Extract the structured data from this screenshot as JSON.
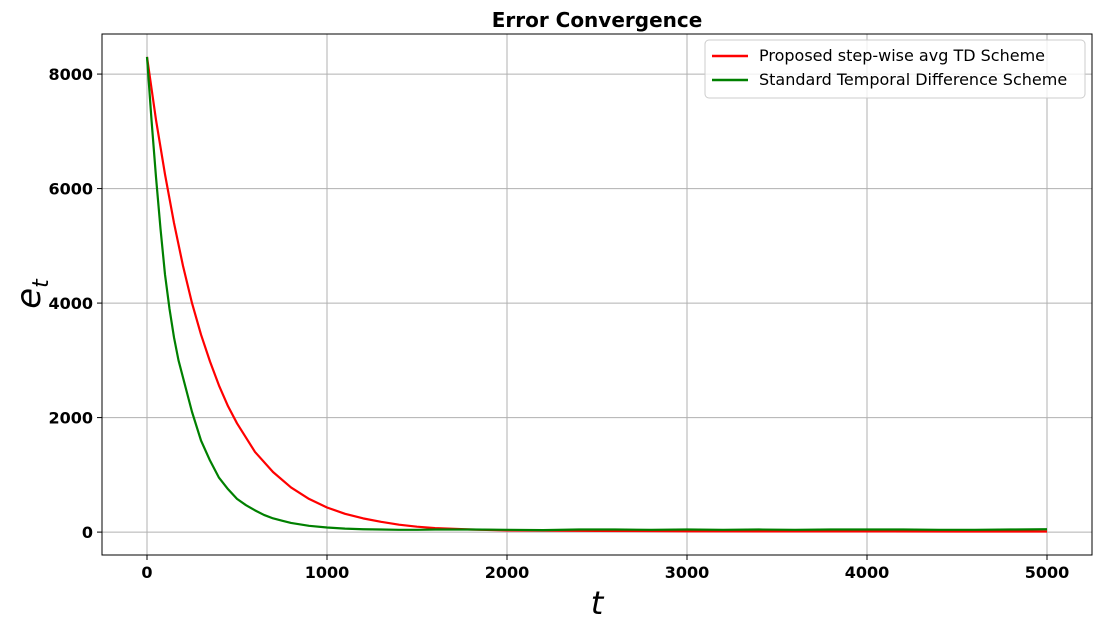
{
  "chart_data": {
    "type": "line",
    "title": "Error Convergence",
    "xlabel": "t",
    "ylabel_base": "e",
    "ylabel_sub": "t",
    "xlim": [
      -250,
      5250
    ],
    "ylim": [
      -400,
      8700
    ],
    "x_ticks": [
      0,
      1000,
      2000,
      3000,
      4000,
      5000
    ],
    "y_ticks": [
      0,
      2000,
      4000,
      6000,
      8000
    ],
    "x_tick_labels": [
      "0",
      "1000",
      "2000",
      "3000",
      "4000",
      "5000"
    ],
    "y_tick_labels": [
      "0",
      "2000",
      "4000",
      "6000",
      "8000"
    ],
    "grid": true,
    "legend_position": "top-right",
    "series": [
      {
        "name": "Proposed step-wise avg TD Scheme",
        "color": "#ff0000",
        "x": [
          0,
          50,
          100,
          150,
          200,
          250,
          300,
          350,
          400,
          450,
          500,
          600,
          700,
          800,
          900,
          1000,
          1100,
          1200,
          1300,
          1400,
          1500,
          1600,
          1800,
          2000,
          2500,
          3000,
          3500,
          4000,
          4500,
          5000
        ],
        "y": [
          8300,
          7200,
          6250,
          5400,
          4650,
          4000,
          3450,
          2980,
          2560,
          2200,
          1900,
          1400,
          1050,
          780,
          580,
          430,
          320,
          240,
          180,
          130,
          95,
          70,
          45,
          30,
          20,
          15,
          12,
          12,
          10,
          10
        ]
      },
      {
        "name": "Standard Temporal Difference Scheme",
        "color": "#008000",
        "x": [
          0,
          25,
          50,
          75,
          100,
          125,
          150,
          175,
          200,
          250,
          300,
          350,
          400,
          450,
          500,
          550,
          600,
          650,
          700,
          750,
          800,
          900,
          1000,
          1100,
          1200,
          1300,
          1400,
          1500,
          1600,
          1800,
          2000,
          2200,
          2400,
          2600,
          2800,
          3000,
          3200,
          3400,
          3600,
          3800,
          4000,
          4200,
          4400,
          4600,
          4800,
          5000
        ],
        "y": [
          8300,
          7200,
          6200,
          5300,
          4500,
          3900,
          3400,
          3000,
          2700,
          2100,
          1600,
          1250,
          950,
          750,
          580,
          470,
          380,
          300,
          240,
          200,
          160,
          110,
          80,
          60,
          50,
          45,
          40,
          40,
          45,
          45,
          40,
          35,
          45,
          45,
          40,
          45,
          40,
          45,
          40,
          45,
          45,
          45,
          40,
          40,
          45,
          50
        ]
      }
    ]
  }
}
